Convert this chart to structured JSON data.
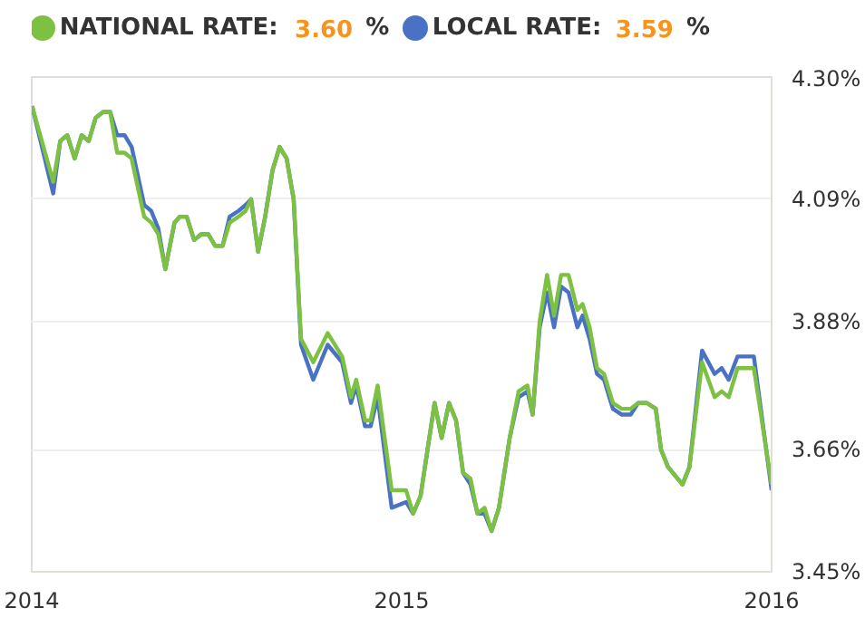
{
  "chart_data": {
    "type": "line",
    "x": [
      2014.001,
      2014.058,
      2014.077,
      2014.096,
      2014.116,
      2014.135,
      2014.154,
      2014.173,
      2014.193,
      2014.212,
      2014.231,
      2014.251,
      2014.27,
      2014.304,
      2014.323,
      2014.342,
      2014.361,
      2014.386,
      2014.4,
      2014.419,
      2014.439,
      2014.458,
      2014.477,
      2014.496,
      2014.516,
      2014.535,
      2014.559,
      2014.578,
      2014.593,
      2014.612,
      2014.631,
      2014.651,
      2014.67,
      2014.689,
      2014.708,
      2014.728,
      2014.761,
      2014.8,
      2014.839,
      2014.863,
      2014.877,
      2014.901,
      2014.916,
      2014.935,
      2014.973,
      2015.012,
      2015.031,
      2015.051,
      2015.089,
      2015.108,
      2015.128,
      2015.147,
      2015.166,
      2015.186,
      2015.205,
      2015.224,
      2015.243,
      2015.263,
      2015.292,
      2015.316,
      2015.34,
      2015.354,
      2015.373,
      2015.393,
      2015.412,
      2015.431,
      2015.451,
      2015.475,
      2015.489,
      2015.508,
      2015.528,
      2015.547,
      2015.571,
      2015.595,
      2015.619,
      2015.639,
      2015.663,
      2015.687,
      2015.701,
      2015.72,
      2015.759,
      2015.778,
      2015.812,
      2015.846,
      2015.865,
      2015.884,
      2015.908,
      2015.952,
      2016.0
    ],
    "series": [
      {
        "name": "LOCAL RATE: 3.59 %",
        "color": "#4a72c4",
        "values": [
          4.25,
          4.1,
          4.19,
          4.2,
          4.16,
          4.2,
          4.19,
          4.23,
          4.24,
          4.24,
          4.2,
          4.2,
          4.18,
          4.08,
          4.07,
          4.04,
          3.97,
          4.05,
          4.06,
          4.06,
          4.02,
          4.03,
          4.03,
          4.01,
          4.01,
          4.06,
          4.07,
          4.08,
          4.09,
          4.0,
          4.06,
          4.14,
          4.18,
          4.16,
          4.09,
          3.84,
          3.78,
          3.84,
          3.81,
          3.74,
          3.77,
          3.7,
          3.7,
          3.75,
          3.56,
          3.57,
          3.55,
          3.58,
          3.74,
          3.68,
          3.74,
          3.71,
          3.62,
          3.6,
          3.55,
          3.55,
          3.52,
          3.56,
          3.68,
          3.75,
          3.76,
          3.72,
          3.87,
          3.93,
          3.87,
          3.94,
          3.93,
          3.87,
          3.89,
          3.85,
          3.79,
          3.78,
          3.73,
          3.72,
          3.72,
          3.74,
          3.74,
          3.73,
          3.66,
          3.63,
          3.6,
          3.63,
          3.83,
          3.79,
          3.8,
          3.78,
          3.82,
          3.82,
          3.59
        ]
      },
      {
        "name": "NATIONAL RATE: 3.60 %",
        "color": "#7cc142",
        "values": [
          4.25,
          4.12,
          4.19,
          4.2,
          4.16,
          4.2,
          4.19,
          4.23,
          4.24,
          4.24,
          4.17,
          4.17,
          4.16,
          4.06,
          4.05,
          4.03,
          3.97,
          4.05,
          4.06,
          4.06,
          4.02,
          4.03,
          4.03,
          4.01,
          4.01,
          4.05,
          4.06,
          4.07,
          4.09,
          4.0,
          4.06,
          4.14,
          4.18,
          4.16,
          4.09,
          3.85,
          3.81,
          3.86,
          3.82,
          3.75,
          3.78,
          3.71,
          3.71,
          3.77,
          3.59,
          3.59,
          3.55,
          3.58,
          3.74,
          3.68,
          3.74,
          3.71,
          3.62,
          3.61,
          3.55,
          3.56,
          3.52,
          3.56,
          3.68,
          3.76,
          3.77,
          3.72,
          3.88,
          3.96,
          3.89,
          3.96,
          3.96,
          3.9,
          3.91,
          3.87,
          3.8,
          3.79,
          3.74,
          3.73,
          3.73,
          3.74,
          3.74,
          3.73,
          3.66,
          3.63,
          3.6,
          3.63,
          3.81,
          3.75,
          3.76,
          3.75,
          3.8,
          3.8,
          3.6
        ]
      }
    ],
    "xlim": [
      2014,
      2016
    ],
    "xticks": [
      2014,
      2015,
      2016
    ],
    "ylim": [
      3.45,
      4.3
    ],
    "yticks": [
      {
        "value": 3.45,
        "label": "3.45%"
      },
      {
        "value": 3.66,
        "label": "3.66%"
      },
      {
        "value": 3.88,
        "label": "3.88%"
      },
      {
        "value": 4.09,
        "label": "4.09%"
      },
      {
        "value": 4.3,
        "label": "4.30%"
      }
    ],
    "grid": "y",
    "legend": "top left",
    "line_style": "solid",
    "marker": "none"
  }
}
